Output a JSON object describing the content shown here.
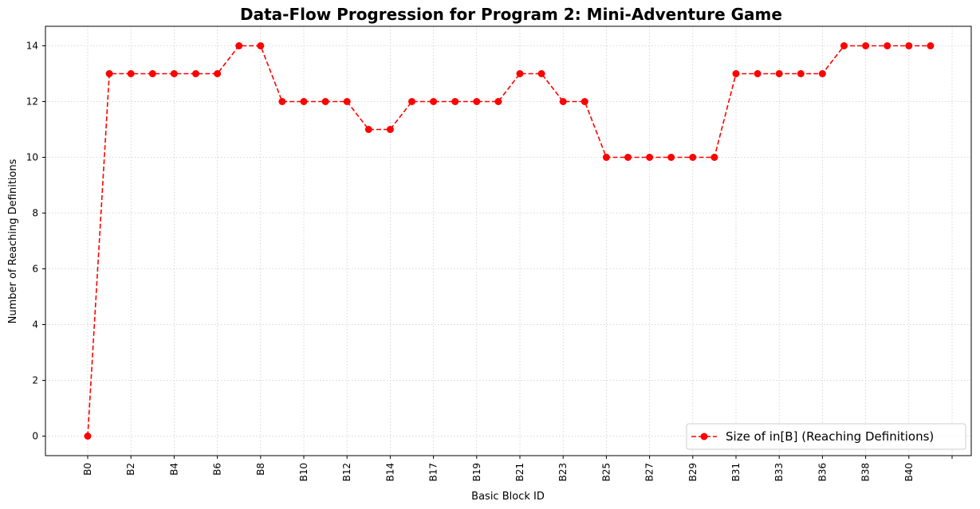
{
  "chart_data": {
    "type": "line",
    "title": "Data-Flow Progression for Program 2: Mini-Adventure Game",
    "xlabel": "Basic Block ID",
    "ylabel": "Number of Reaching Definitions",
    "ylim": [
      -0.7,
      14.7
    ],
    "yticks": [
      0,
      2,
      4,
      6,
      8,
      10,
      12,
      14
    ],
    "grid": true,
    "legend_position": "lower-right",
    "color": "#ff0000",
    "line_style": "dashed",
    "marker": "circle",
    "tick_labels": [
      "B0",
      "B2",
      "B4",
      "B6",
      "B8",
      "B10",
      "B12",
      "B14",
      "B17",
      "B19",
      "B21",
      "B23",
      "B25",
      "B27",
      "B29",
      "B31",
      "B33",
      "B36",
      "B38",
      "B40",
      ""
    ],
    "series": [
      {
        "name": "Size of in[B] (Reaching Definitions)",
        "values": [
          0,
          13,
          13,
          13,
          13,
          13,
          13,
          14,
          14,
          12,
          12,
          12,
          12,
          11,
          11,
          12,
          12,
          12,
          12,
          12,
          13,
          13,
          12,
          12,
          10,
          10,
          10,
          10,
          10,
          10,
          13,
          13,
          13,
          13,
          13,
          14,
          14,
          14,
          14,
          14
        ]
      }
    ]
  }
}
